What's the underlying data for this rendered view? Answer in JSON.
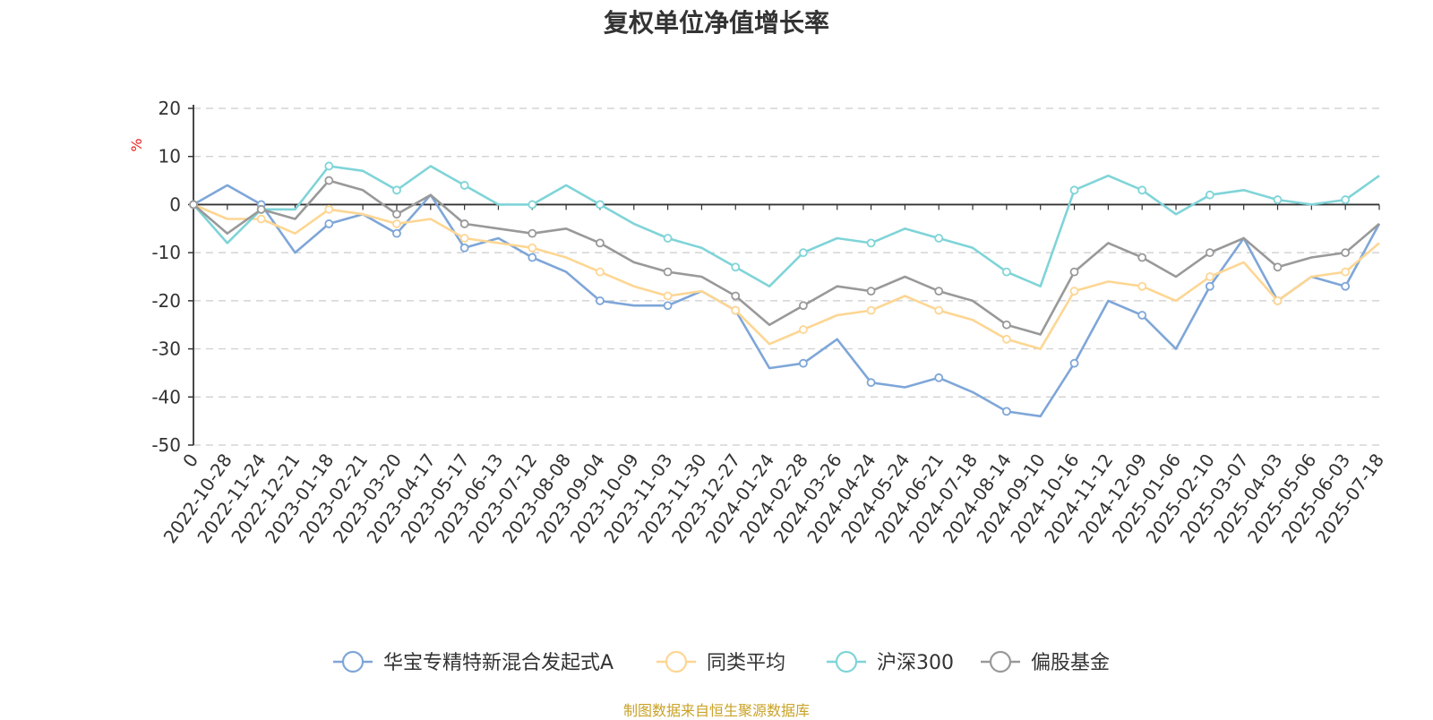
{
  "title": "复权单位净值增长率",
  "source": "制图数据来自恒生聚源数据库",
  "chart_data": {
    "type": "line",
    "title": "复权单位净值增长率",
    "xlabel": "",
    "ylabel": "%",
    "ylim": [
      -50,
      20
    ],
    "y_ticks": [
      20,
      10,
      0,
      -10,
      -20,
      -30,
      -40,
      -50
    ],
    "grid": true,
    "legend_position": "bottom",
    "x_tick_labels": [
      "0",
      "2022-10-28",
      "2022-11-24",
      "2022-12-21",
      "2023-01-18",
      "2023-02-21",
      "2023-03-20",
      "2023-04-17",
      "2023-05-17",
      "2023-06-13",
      "2023-07-12",
      "2023-08-08",
      "2023-09-04",
      "2023-10-09",
      "2023-11-03",
      "2023-11-30",
      "2023-12-27",
      "2024-01-24",
      "2024-02-28",
      "2024-03-26",
      "2024-04-24",
      "2024-05-24",
      "2024-06-21",
      "2024-07-18",
      "2024-08-14",
      "2024-09-10",
      "2024-10-16",
      "2024-11-12",
      "2024-12-09",
      "2025-01-06",
      "2025-02-10",
      "2025-03-07",
      "2025-04-03",
      "2025-05-06",
      "2025-06-03",
      "2025-07-18"
    ],
    "x": [
      "0",
      "2022-10-28",
      "2022-11-24",
      "2022-12-21",
      "2023-01-18",
      "2023-02-21",
      "2023-03-20",
      "2023-04-17",
      "2023-05-17",
      "2023-06-13",
      "2023-07-12",
      "2023-08-08",
      "2023-09-04",
      "2023-10-09",
      "2023-11-03",
      "2023-11-30",
      "2023-12-27",
      "2024-01-24",
      "2024-02-28",
      "2024-03-26",
      "2024-04-24",
      "2024-05-24",
      "2024-06-21",
      "2024-07-18",
      "2024-08-14",
      "2024-09-10",
      "2024-10-16",
      "2024-11-12",
      "2024-12-09",
      "2025-01-06",
      "2025-02-10",
      "2025-03-07",
      "2025-04-03",
      "2025-05-06",
      "2025-06-03",
      "2025-07-18"
    ],
    "series": [
      {
        "name": "华宝专精特新混合发起式A",
        "color": "#7ea6d8",
        "values": [
          0,
          4,
          0,
          -10,
          -4,
          -2,
          -6,
          2,
          -9,
          -7,
          -11,
          -14,
          -20,
          -21,
          -21,
          -18,
          -22,
          -34,
          -33,
          -28,
          -37,
          -38,
          -36,
          -39,
          -43,
          -44,
          -33,
          -20,
          -23,
          -30,
          -17,
          -7,
          -20,
          -15,
          -17,
          -4
        ]
      },
      {
        "name": "同类平均",
        "color": "#fdd693",
        "values": [
          0,
          -3,
          -3,
          -6,
          -1,
          -2,
          -4,
          -3,
          -7,
          -8,
          -9,
          -11,
          -14,
          -17,
          -19,
          -18,
          -22,
          -29,
          -26,
          -23,
          -22,
          -19,
          -22,
          -24,
          -28,
          -30,
          -18,
          -16,
          -17,
          -20,
          -15,
          -12,
          -20,
          -15,
          -14,
          -8
        ]
      },
      {
        "name": "沪深300",
        "color": "#7fd4d8",
        "values": [
          0,
          -8,
          -1,
          -1,
          8,
          7,
          3,
          8,
          4,
          0,
          0,
          4,
          0,
          -4,
          -7,
          -9,
          -13,
          -17,
          -10,
          -7,
          -8,
          -5,
          -7,
          -9,
          -14,
          -17,
          3,
          6,
          3,
          -2,
          2,
          3,
          1,
          0,
          1,
          6
        ]
      },
      {
        "name": "偏股基金",
        "color": "#999999",
        "values": [
          0,
          -6,
          -1,
          -3,
          5,
          3,
          -2,
          2,
          -4,
          -5,
          -6,
          -5,
          -8,
          -12,
          -14,
          -15,
          -19,
          -25,
          -21,
          -17,
          -18,
          -15,
          -18,
          -20,
          -25,
          -27,
          -14,
          -8,
          -11,
          -15,
          -10,
          -7,
          -13,
          -11,
          -10,
          -4
        ]
      }
    ]
  }
}
